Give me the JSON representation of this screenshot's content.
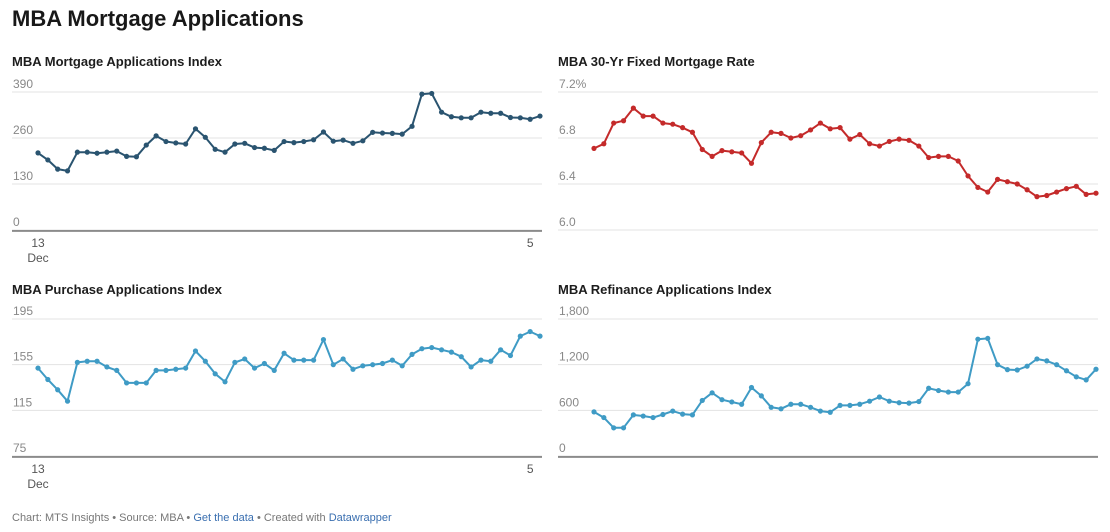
{
  "title": "MBA Mortgage Applications",
  "footer": {
    "chart_by": "Chart: MTS Insights",
    "separator": " • ",
    "source": "Source: MBA",
    "get_data_link": "Get the data",
    "created_with": "Created with",
    "datawrapper_link": "Datawrapper"
  },
  "chart_data": [
    {
      "id": "applications-index",
      "type": "line",
      "title": "MBA Mortgage Applications Index",
      "color": "#2a5470",
      "ylim": [
        0,
        390
      ],
      "yticks": [
        0,
        130,
        260,
        390
      ],
      "ytick_labels": [
        "0",
        "130",
        "260",
        "390"
      ],
      "xlabels": [
        {
          "index": 0,
          "line1": "13",
          "line2": "Dec"
        },
        {
          "index": 50,
          "line1": "5",
          "line2": ""
        }
      ],
      "baseline": true,
      "grid": true,
      "values": [
        218,
        198,
        172,
        167,
        220,
        220,
        217,
        220,
        223,
        208,
        207,
        240,
        266,
        250,
        246,
        243,
        286,
        262,
        228,
        220,
        243,
        245,
        233,
        231,
        225,
        250,
        247,
        250,
        255,
        277,
        251,
        254,
        245,
        252,
        276,
        274,
        273,
        271,
        293,
        384,
        386,
        333,
        320,
        317,
        317,
        333,
        330,
        330,
        318,
        317,
        313,
        322
      ]
    },
    {
      "id": "fixed-rate",
      "type": "line",
      "title": "MBA 30-Yr Fixed Mortgage Rate",
      "color": "#c42a2a",
      "ylim": [
        6.0,
        7.2
      ],
      "yticks": [
        6.0,
        6.4,
        6.8,
        7.2
      ],
      "ytick_labels": [
        "6.0",
        "6.4",
        "6.8",
        "7.2%"
      ],
      "xlabels": [],
      "baseline": false,
      "grid": true,
      "values": [
        6.71,
        6.75,
        6.93,
        6.95,
        7.06,
        6.99,
        6.99,
        6.93,
        6.92,
        6.89,
        6.85,
        6.7,
        6.64,
        6.69,
        6.68,
        6.67,
        6.58,
        6.76,
        6.85,
        6.84,
        6.8,
        6.82,
        6.87,
        6.93,
        6.88,
        6.89,
        6.79,
        6.83,
        6.75,
        6.73,
        6.77,
        6.79,
        6.78,
        6.73,
        6.63,
        6.64,
        6.64,
        6.6,
        6.47,
        6.37,
        6.33,
        6.44,
        6.42,
        6.4,
        6.35,
        6.29,
        6.3,
        6.33,
        6.36,
        6.38,
        6.31,
        6.32
      ]
    },
    {
      "id": "purchase-index",
      "type": "line",
      "title": "MBA Purchase Applications Index",
      "color": "#3f9bc5",
      "ylim": [
        75,
        195
      ],
      "yticks": [
        75,
        115,
        155,
        195
      ],
      "ytick_labels": [
        "75",
        "115",
        "155",
        "195"
      ],
      "xlabels": [
        {
          "index": 0,
          "line1": "13",
          "line2": "Dec"
        },
        {
          "index": 50,
          "line1": "5",
          "line2": ""
        }
      ],
      "baseline": true,
      "grid": true,
      "values": [
        152,
        142,
        133,
        123,
        157,
        158,
        158,
        153,
        150,
        139,
        139,
        139,
        150,
        150,
        151,
        152,
        167,
        158,
        147,
        140,
        157,
        160,
        152,
        156,
        150,
        165,
        159,
        159,
        159,
        177,
        155,
        160,
        151,
        154,
        155,
        156,
        159,
        154,
        164,
        169,
        170,
        168,
        166,
        162,
        153,
        159,
        158,
        168,
        163,
        180,
        184,
        180
      ]
    },
    {
      "id": "refinance-index",
      "type": "line",
      "title": "MBA Refinance Applications Index",
      "color": "#3f9bc5",
      "ylim": [
        0,
        1800
      ],
      "yticks": [
        0,
        600,
        1200,
        1800
      ],
      "ytick_labels": [
        "0",
        "600",
        "1,200",
        "1,800"
      ],
      "xlabels": [],
      "baseline": true,
      "grid": true,
      "values": [
        580,
        505,
        370,
        370,
        540,
        525,
        505,
        545,
        590,
        550,
        540,
        730,
        830,
        740,
        710,
        680,
        900,
        790,
        640,
        620,
        680,
        680,
        640,
        590,
        575,
        665,
        665,
        680,
        720,
        775,
        720,
        700,
        695,
        715,
        890,
        860,
        840,
        840,
        950,
        1535,
        1545,
        1200,
        1135,
        1130,
        1180,
        1275,
        1250,
        1200,
        1120,
        1040,
        1000,
        1140
      ]
    }
  ]
}
